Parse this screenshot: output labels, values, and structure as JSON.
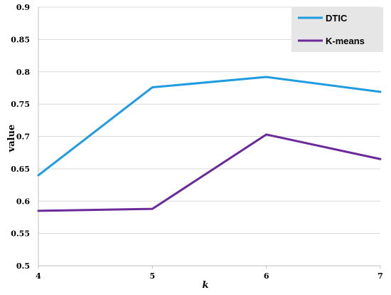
{
  "chart_data": {
    "type": "line",
    "x": [
      4,
      5,
      6,
      7
    ],
    "series": [
      {
        "name": "DTIC",
        "values": [
          0.64,
          0.776,
          0.792,
          0.769
        ],
        "color": "#1f9be0"
      },
      {
        "name": "K-means",
        "values": [
          0.585,
          0.588,
          0.703,
          0.665
        ],
        "color": "#6a2a9a"
      }
    ],
    "xlabel": "k",
    "ylabel": "value",
    "xlim": [
      4,
      7
    ],
    "ylim": [
      0.5,
      0.9
    ],
    "xticks": [
      "4",
      "5",
      "6",
      "7"
    ],
    "yticks": [
      "0.5",
      "0.55",
      "0.6",
      "0.65",
      "0.7",
      "0.75",
      "0.8",
      "0.85",
      "0.9"
    ],
    "grid": true,
    "legend_position": "top-right"
  }
}
